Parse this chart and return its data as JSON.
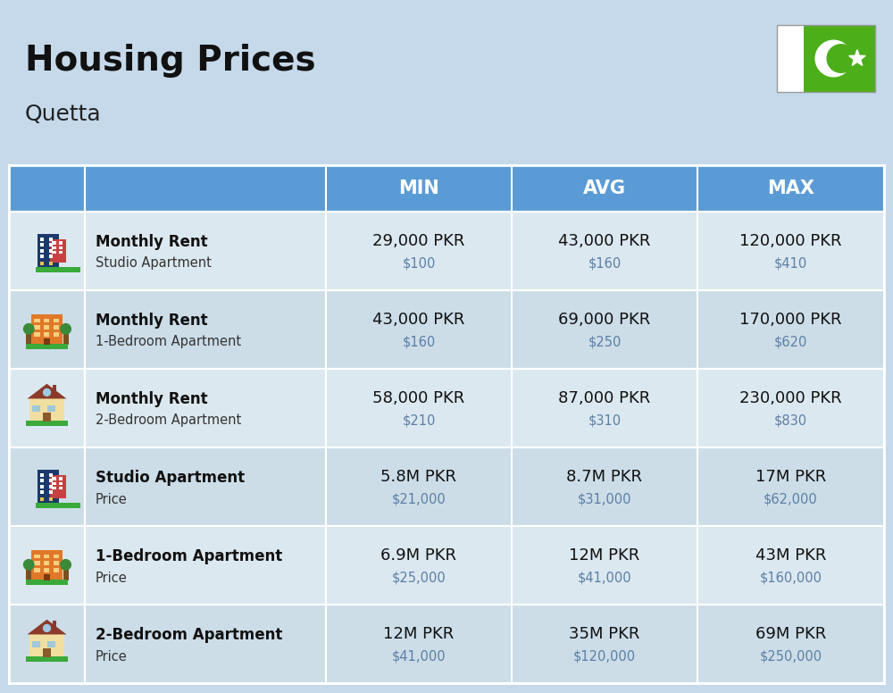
{
  "title": "Housing Prices",
  "subtitle": "Quetta",
  "bg_color": "#c5d9ea",
  "header_bg": "#5b9bd5",
  "header_text_color": "#ffffff",
  "row_colors": [
    "#dce8f0",
    "#ccdde8"
  ],
  "col_headers": [
    "MIN",
    "AVG",
    "MAX"
  ],
  "flag_green": "#4caf1a",
  "rows": [
    {
      "label_bold": "Monthly Rent",
      "label_sub": "Studio Apartment",
      "icon_type": "office_blue",
      "min_pkr": "29,000 PKR",
      "min_usd": "$100",
      "avg_pkr": "43,000 PKR",
      "avg_usd": "$160",
      "max_pkr": "120,000 PKR",
      "max_usd": "$410"
    },
    {
      "label_bold": "Monthly Rent",
      "label_sub": "1-Bedroom Apartment",
      "icon_type": "apt_orange",
      "min_pkr": "43,000 PKR",
      "min_usd": "$160",
      "avg_pkr": "69,000 PKR",
      "avg_usd": "$250",
      "max_pkr": "170,000 PKR",
      "max_usd": "$620"
    },
    {
      "label_bold": "Monthly Rent",
      "label_sub": "2-Bedroom Apartment",
      "icon_type": "house_beige",
      "min_pkr": "58,000 PKR",
      "min_usd": "$210",
      "avg_pkr": "87,000 PKR",
      "avg_usd": "$310",
      "max_pkr": "230,000 PKR",
      "max_usd": "$830"
    },
    {
      "label_bold": "Studio Apartment",
      "label_sub": "Price",
      "icon_type": "office_blue",
      "min_pkr": "5.8M PKR",
      "min_usd": "$21,000",
      "avg_pkr": "8.7M PKR",
      "avg_usd": "$31,000",
      "max_pkr": "17M PKR",
      "max_usd": "$62,000"
    },
    {
      "label_bold": "1-Bedroom Apartment",
      "label_sub": "Price",
      "icon_type": "apt_orange",
      "min_pkr": "6.9M PKR",
      "min_usd": "$25,000",
      "avg_pkr": "12M PKR",
      "avg_usd": "$41,000",
      "max_pkr": "43M PKR",
      "max_usd": "$160,000"
    },
    {
      "label_bold": "2-Bedroom Apartment",
      "label_sub": "Price",
      "icon_type": "house_beige",
      "min_pkr": "12M PKR",
      "min_usd": "$41,000",
      "avg_pkr": "35M PKR",
      "avg_usd": "$120,000",
      "max_pkr": "69M PKR",
      "max_usd": "$250,000"
    }
  ]
}
